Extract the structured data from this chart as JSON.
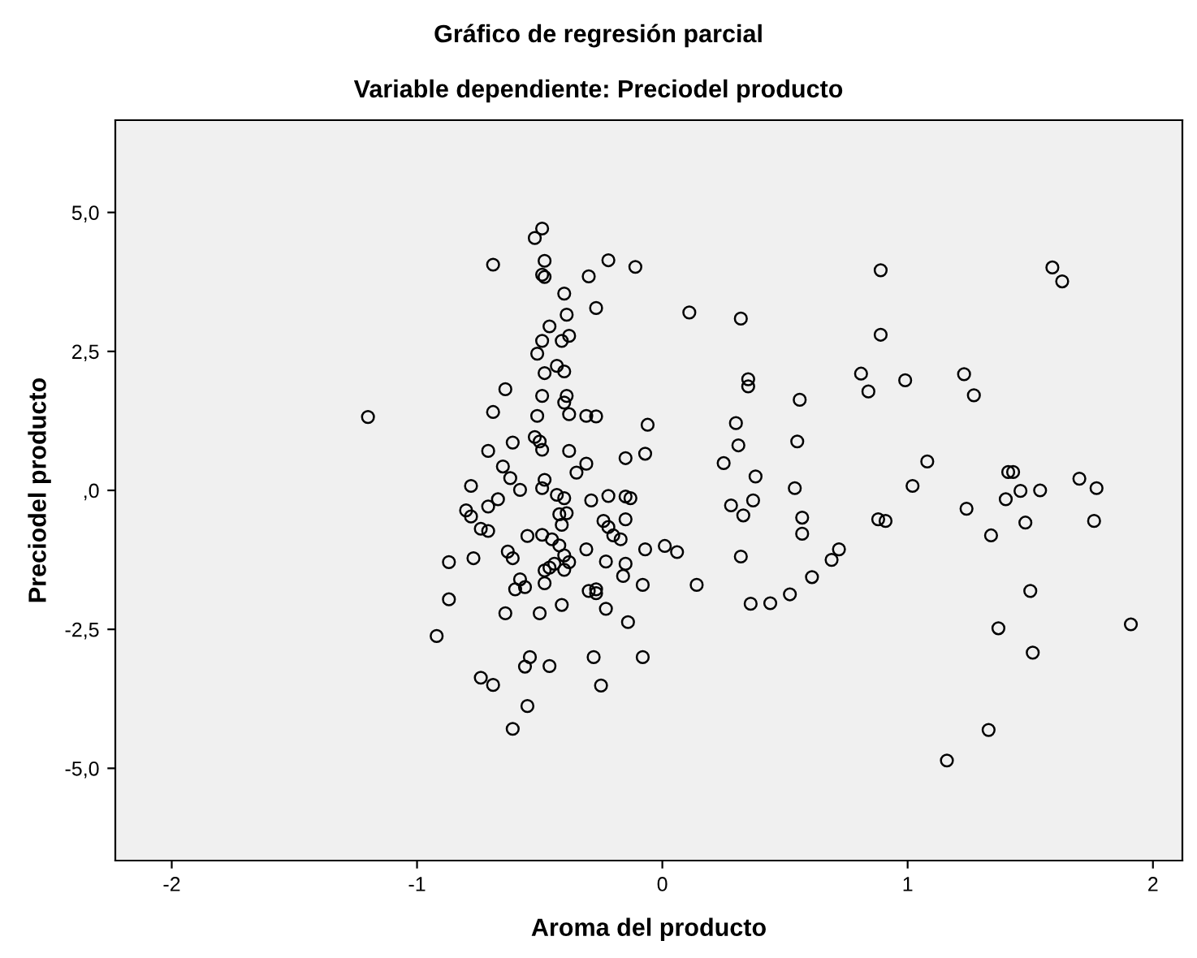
{
  "chart_data": {
    "type": "scatter",
    "title": "Gráfico de regresión parcial",
    "subtitle": "Variable dependiente: Preciodel producto",
    "xlabel": "Aroma del producto",
    "ylabel": "Preciodel producto",
    "marker": "circle",
    "grid": false,
    "xlim": [
      -2.23,
      2.12
    ],
    "ylim": [
      -6.66,
      6.66
    ],
    "xticks": [
      -2,
      -1,
      0,
      1,
      2
    ],
    "yticks": [
      {
        "value": 5,
        "label": "5,0"
      },
      {
        "value": 2.5,
        "label": "2,5"
      },
      {
        "value": 0,
        "label": ",0"
      },
      {
        "value": -2.5,
        "label": "-2,5"
      },
      {
        "value": -5,
        "label": "-5,0"
      }
    ],
    "series": [
      {
        "color": "#000000",
        "x": [
          -1.2,
          -0.92,
          -0.87,
          -0.87,
          -0.8,
          -0.78,
          -0.78,
          -0.77,
          -0.74,
          -0.74,
          -0.71,
          -0.71,
          -0.71,
          -0.69,
          -0.69,
          -0.69,
          -0.67,
          -0.65,
          -0.64,
          -0.64,
          -0.63,
          -0.62,
          -0.61,
          -0.61,
          -0.61,
          -0.6,
          -0.58,
          -0.58,
          -0.56,
          -0.56,
          -0.55,
          -0.55,
          -0.54,
          -0.52,
          -0.52,
          -0.51,
          -0.51,
          -0.5,
          -0.5,
          -0.49,
          -0.49,
          -0.49,
          -0.49,
          -0.49,
          -0.49,
          -0.49,
          -0.48,
          -0.48,
          -0.48,
          -0.48,
          -0.48,
          -0.48,
          -0.46,
          -0.46,
          -0.46,
          -0.45,
          -0.44,
          -0.43,
          -0.43,
          -0.42,
          -0.42,
          -0.41,
          -0.41,
          -0.41,
          -0.4,
          -0.4,
          -0.4,
          -0.4,
          -0.4,
          -0.4,
          -0.39,
          -0.39,
          -0.39,
          -0.38,
          -0.38,
          -0.38,
          -0.38,
          -0.35,
          -0.31,
          -0.31,
          -0.31,
          -0.3,
          -0.3,
          -0.29,
          -0.28,
          -0.27,
          -0.27,
          -0.27,
          -0.27,
          -0.25,
          -0.24,
          -0.23,
          -0.23,
          -0.22,
          -0.22,
          -0.22,
          -0.2,
          -0.17,
          -0.16,
          -0.15,
          -0.15,
          -0.15,
          -0.15,
          -0.13,
          -0.14,
          -0.11,
          -0.08,
          -0.08,
          -0.07,
          -0.07,
          -0.06,
          0.01,
          0.06,
          0.11,
          0.14,
          0.25,
          0.28,
          0.3,
          0.31,
          0.32,
          0.32,
          0.33,
          0.35,
          0.35,
          0.36,
          0.37,
          0.38,
          0.44,
          0.52,
          0.54,
          0.55,
          0.56,
          0.57,
          0.57,
          0.61,
          0.69,
          0.72,
          0.81,
          0.84,
          0.88,
          0.89,
          0.89,
          0.91,
          0.99,
          1.02,
          1.08,
          1.16,
          1.23,
          1.24,
          1.27,
          1.33,
          1.34,
          1.37,
          1.4,
          1.41,
          1.43,
          1.46,
          1.48,
          1.5,
          1.51,
          1.54,
          1.59,
          1.63,
          1.7,
          1.77,
          1.76,
          1.91
        ],
        "values": [
          1.32,
          -2.62,
          -1.29,
          -1.96,
          -0.36,
          -0.47,
          0.08,
          -1.22,
          -0.69,
          -3.37,
          -0.29,
          -0.73,
          0.71,
          4.06,
          1.41,
          -3.5,
          -0.16,
          0.43,
          -2.21,
          1.82,
          -1.1,
          0.22,
          -4.29,
          0.86,
          -1.22,
          -1.78,
          -1.6,
          0.01,
          -1.74,
          -3.17,
          -0.82,
          -3.88,
          -3.0,
          4.54,
          0.96,
          1.34,
          2.46,
          -2.21,
          0.88,
          2.69,
          -0.8,
          4.71,
          0.04,
          0.73,
          1.7,
          3.88,
          -1.44,
          -1.67,
          4.13,
          3.84,
          2.11,
          0.19,
          -3.16,
          2.95,
          -1.39,
          -0.88,
          -1.32,
          2.24,
          -0.08,
          -0.43,
          -0.99,
          -0.62,
          -2.06,
          2.69,
          3.54,
          2.14,
          1.58,
          -1.17,
          -1.43,
          -0.14,
          3.16,
          1.7,
          -0.41,
          1.37,
          -1.29,
          0.71,
          2.78,
          0.32,
          1.34,
          -1.06,
          0.48,
          3.85,
          -1.81,
          -0.18,
          -3.0,
          3.28,
          1.33,
          -1.78,
          -1.85,
          -3.51,
          -0.55,
          -1.28,
          -2.13,
          4.14,
          -0.66,
          -0.1,
          -0.81,
          -0.88,
          -1.54,
          -0.52,
          0.58,
          -0.11,
          -1.32,
          -0.14,
          -2.37,
          4.02,
          -3.0,
          -1.7,
          0.66,
          -1.06,
          1.18,
          -1.0,
          -1.11,
          3.2,
          -1.7,
          0.49,
          -0.27,
          1.21,
          0.81,
          3.09,
          -1.19,
          -0.45,
          1.87,
          2.0,
          -2.04,
          -0.18,
          0.25,
          -2.03,
          -1.87,
          0.04,
          0.88,
          1.63,
          -0.49,
          -0.78,
          -1.56,
          -1.25,
          -1.06,
          2.1,
          1.78,
          -0.52,
          3.96,
          2.8,
          -0.55,
          1.98,
          0.08,
          0.52,
          -4.86,
          2.09,
          -0.33,
          1.71,
          -4.31,
          -0.81,
          -2.48,
          -0.16,
          0.33,
          0.33,
          -0.01,
          -0.58,
          -1.81,
          -2.92,
          0.0,
          4.01,
          3.76,
          0.21,
          0.04,
          -0.55,
          -2.41
        ]
      }
    ]
  }
}
